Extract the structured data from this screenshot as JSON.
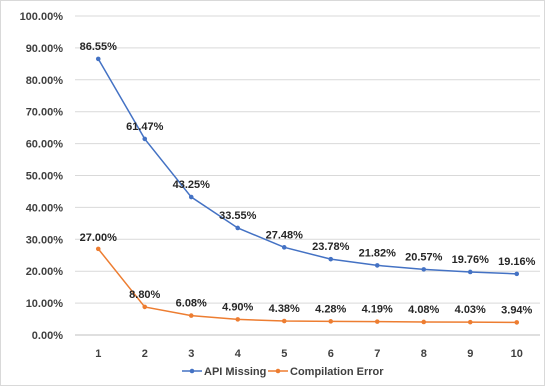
{
  "chart_data": {
    "type": "line",
    "title": "",
    "xlabel": "",
    "ylabel": "",
    "x": [
      1,
      2,
      3,
      4,
      5,
      6,
      7,
      8,
      9,
      10
    ],
    "ylim": [
      0,
      100
    ],
    "y_ticks": [
      "0.00%",
      "10.00%",
      "20.00%",
      "30.00%",
      "40.00%",
      "50.00%",
      "60.00%",
      "70.00%",
      "80.00%",
      "90.00%",
      "100.00%"
    ],
    "grid": true,
    "legend_position": "bottom",
    "series": [
      {
        "name": "API Missing",
        "color": "#4472C4",
        "values": [
          86.55,
          61.47,
          43.25,
          33.55,
          27.48,
          23.78,
          21.82,
          20.57,
          19.76,
          19.16
        ],
        "labels": [
          "86.55%",
          "61.47%",
          "43.25%",
          "33.55%",
          "27.48%",
          "23.78%",
          "21.82%",
          "20.57%",
          "19.76%",
          "19.16%"
        ]
      },
      {
        "name": "Compilation  Error",
        "color": "#ED7D31",
        "values": [
          27.0,
          8.8,
          6.08,
          4.9,
          4.38,
          4.28,
          4.19,
          4.08,
          4.03,
          3.94
        ],
        "labels": [
          "27.00%",
          "8.80%",
          "6.08%",
          "4.90%",
          "4.38%",
          "4.28%",
          "4.19%",
          "4.08%",
          "4.03%",
          "3.94%"
        ]
      }
    ]
  }
}
